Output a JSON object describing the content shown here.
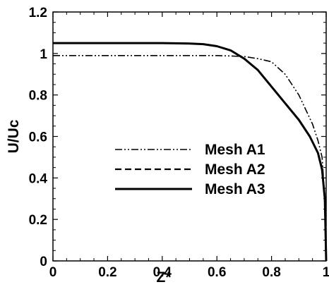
{
  "chart_data": {
    "type": "line",
    "xlabel": "Z*",
    "ylabel": "U/Uc",
    "xlim": [
      0,
      1
    ],
    "ylim": [
      0,
      1.2
    ],
    "x_ticks": [
      0,
      0.2,
      0.4,
      0.6,
      0.8,
      1
    ],
    "x_tick_labels": [
      "0",
      "0.2",
      "0.4",
      "0.6",
      "0.8",
      "1"
    ],
    "y_ticks": [
      0,
      0.2,
      0.4,
      0.6,
      0.8,
      1,
      1.2
    ],
    "y_tick_labels": [
      "0",
      "0.2",
      "0.4",
      "0.6",
      "0.8",
      "1",
      "1.2"
    ],
    "grid": false,
    "legend_position": "center-right",
    "series": [
      {
        "name": "Mesh A1",
        "style": "dash-dot-dot",
        "color": "#000000",
        "x": [
          0,
          0.1,
          0.2,
          0.3,
          0.4,
          0.5,
          0.6,
          0.65,
          0.7,
          0.75,
          0.8,
          0.85,
          0.9,
          0.95,
          0.97,
          0.985,
          0.995,
          1.0
        ],
        "y": [
          0.99,
          0.99,
          0.99,
          0.99,
          0.99,
          0.99,
          0.99,
          0.988,
          0.985,
          0.975,
          0.96,
          0.9,
          0.8,
          0.66,
          0.58,
          0.5,
          0.3,
          0.0
        ]
      },
      {
        "name": "Mesh A2",
        "style": "dashed",
        "color": "#000000",
        "x": [
          0,
          0.1,
          0.2,
          0.3,
          0.4,
          0.5,
          0.55,
          0.6,
          0.65,
          0.7,
          0.75,
          0.8,
          0.85,
          0.9,
          0.94,
          0.97,
          0.985,
          0.995,
          1.0
        ],
        "y": [
          1.05,
          1.05,
          1.05,
          1.05,
          1.05,
          1.048,
          1.045,
          1.035,
          1.015,
          0.975,
          0.92,
          0.84,
          0.76,
          0.68,
          0.6,
          0.52,
          0.45,
          0.3,
          0.0
        ]
      },
      {
        "name": "Mesh A3",
        "style": "solid",
        "color": "#000000",
        "x": [
          0,
          0.1,
          0.2,
          0.3,
          0.4,
          0.5,
          0.55,
          0.6,
          0.65,
          0.7,
          0.75,
          0.8,
          0.85,
          0.9,
          0.94,
          0.97,
          0.985,
          0.995,
          1.0
        ],
        "y": [
          1.05,
          1.05,
          1.05,
          1.05,
          1.05,
          1.048,
          1.045,
          1.035,
          1.015,
          0.975,
          0.92,
          0.84,
          0.76,
          0.68,
          0.6,
          0.52,
          0.44,
          0.3,
          0.0
        ]
      }
    ]
  }
}
